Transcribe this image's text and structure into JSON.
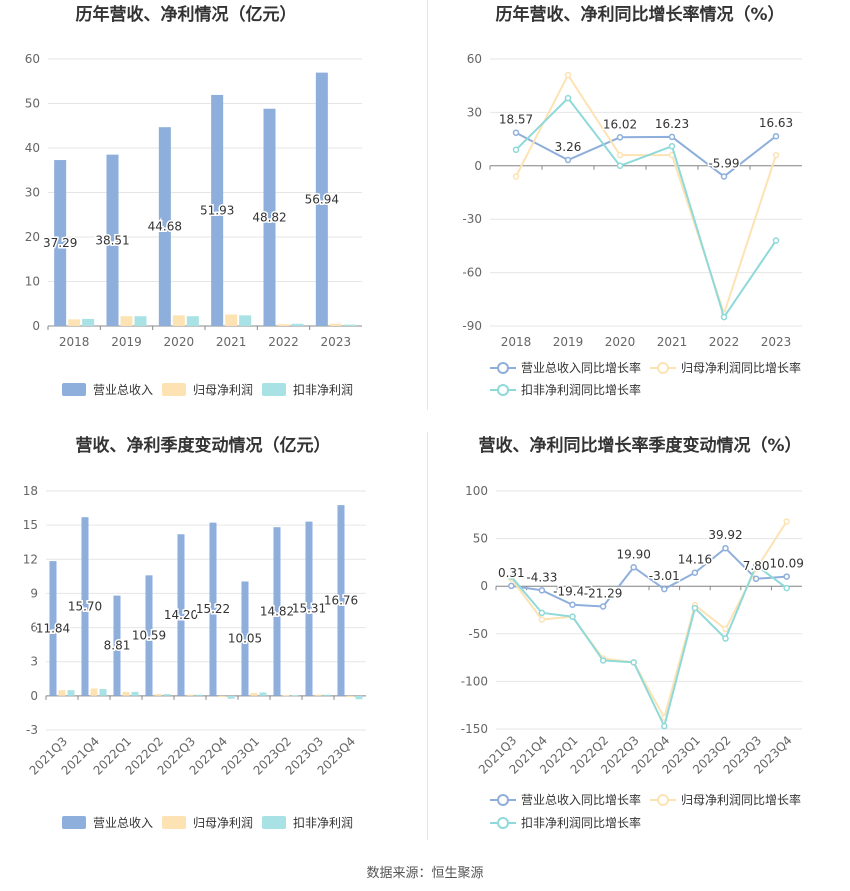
{
  "colors": {
    "revenue": "#8eaedc",
    "net_profit": "#fde3b4",
    "deducted_profit": "#a9e2e4",
    "revenue_line": "#8eaedc",
    "net_profit_line": "#fde3b4",
    "deducted_profit_line": "#8fd9d9",
    "grid": "#e6e6e6",
    "axis_text": "#666666",
    "title": "#333333"
  },
  "source_text": "数据来源：恒生聚源",
  "chart_data": [
    {
      "type": "bar",
      "title": "历年营收、净利情况（亿元）",
      "categories": [
        "2018",
        "2019",
        "2020",
        "2021",
        "2022",
        "2023"
      ],
      "ylim": [
        0,
        60
      ],
      "yticks": [
        "0",
        "10",
        "20",
        "30",
        "40",
        "50",
        "60"
      ],
      "series": [
        {
          "name": "营业总收入",
          "values": [
            37.29,
            38.51,
            44.68,
            51.93,
            48.82,
            56.94
          ],
          "labels": [
            "37.29",
            "38.51",
            "44.68",
            "51.93",
            "48.82",
            "56.94"
          ]
        },
        {
          "name": "归母净利润",
          "values": [
            1.5,
            2.2,
            2.4,
            2.6,
            0.4,
            0.5
          ]
        },
        {
          "name": "扣非净利润",
          "values": [
            1.6,
            2.2,
            2.2,
            2.4,
            0.5,
            0.3
          ]
        }
      ],
      "legend": "bottom",
      "grid": true
    },
    {
      "type": "line",
      "title": "历年营收、净利同比增长率情况（%）",
      "categories": [
        "2018",
        "2019",
        "2020",
        "2021",
        "2022",
        "2023"
      ],
      "ylim": [
        -90,
        60
      ],
      "yticks": [
        "-90",
        "-60",
        "-30",
        "0",
        "30",
        "60"
      ],
      "series": [
        {
          "name": "营业总收入同比增长率",
          "values": [
            18.57,
            3.26,
            16.02,
            16.23,
            -5.99,
            16.63
          ],
          "labels": [
            "18.57",
            "3.26",
            "16.02",
            "16.23",
            "-5.99",
            "16.63"
          ]
        },
        {
          "name": "归母净利润同比增长率",
          "values": [
            -6,
            51,
            6,
            6,
            -83,
            6
          ]
        },
        {
          "name": "扣非净利润同比增长率",
          "values": [
            9,
            38,
            0,
            11,
            -85,
            -42
          ]
        }
      ],
      "legend": "bottom",
      "grid": true
    },
    {
      "type": "bar",
      "title": "营收、净利季度变动情况（亿元）",
      "categories": [
        "2021Q3",
        "2021Q4",
        "2022Q1",
        "2022Q2",
        "2022Q3",
        "2022Q4",
        "2023Q1",
        "2023Q2",
        "2023Q3",
        "2023Q4"
      ],
      "ylim": [
        -3,
        18
      ],
      "yticks": [
        "-3",
        "0",
        "3",
        "6",
        "9",
        "12",
        "15",
        "18"
      ],
      "series": [
        {
          "name": "营业总收入",
          "values": [
            11.84,
            15.7,
            8.81,
            10.59,
            14.2,
            15.22,
            10.05,
            14.82,
            15.31,
            16.76
          ],
          "labels": [
            "11.84",
            "15.70",
            "8.81",
            "10.59",
            "14.20",
            "15.22",
            "10.05",
            "14.82",
            "15.31",
            "16.76"
          ]
        },
        {
          "name": "归母净利润",
          "values": [
            0.5,
            0.65,
            0.35,
            0.15,
            0.1,
            -0.1,
            0.25,
            0.05,
            0.1,
            -0.1
          ]
        },
        {
          "name": "扣非净利润",
          "values": [
            0.5,
            0.6,
            0.35,
            0.15,
            0.1,
            -0.25,
            0.3,
            0.05,
            0.1,
            -0.3
          ]
        }
      ],
      "legend": "bottom",
      "grid": true
    },
    {
      "type": "line",
      "title": "营收、净利同比增长率季度变动情况（%）",
      "categories": [
        "2021Q3",
        "2021Q4",
        "2022Q1",
        "2022Q2",
        "2022Q3",
        "2022Q4",
        "2023Q1",
        "2023Q2",
        "2023Q3",
        "2023Q4"
      ],
      "ylim": [
        -150,
        100
      ],
      "yticks": [
        "-150",
        "-100",
        "-50",
        "0",
        "50",
        "100"
      ],
      "series": [
        {
          "name": "营业总收入同比增长率",
          "values": [
            0.31,
            -4.33,
            -19.47,
            -21.29,
            19.9,
            -3.01,
            14.16,
            39.92,
            7.8,
            10.09
          ],
          "labels": [
            "0.31",
            "-4.33",
            "-19.47",
            "-21.29",
            "19.90",
            "-3.01",
            "14.16",
            "39.92",
            "7.80",
            "10.09"
          ]
        },
        {
          "name": "归母净利润同比增长率",
          "values": [
            8,
            -35,
            -32,
            -76,
            -80,
            -138,
            -20,
            -45,
            18,
            68
          ]
        },
        {
          "name": "扣非净利润同比增长率",
          "values": [
            10,
            -28,
            -32,
            -78,
            -80,
            -147,
            -23,
            -55,
            22,
            -2
          ]
        }
      ],
      "legend": "bottom",
      "grid": true
    }
  ]
}
